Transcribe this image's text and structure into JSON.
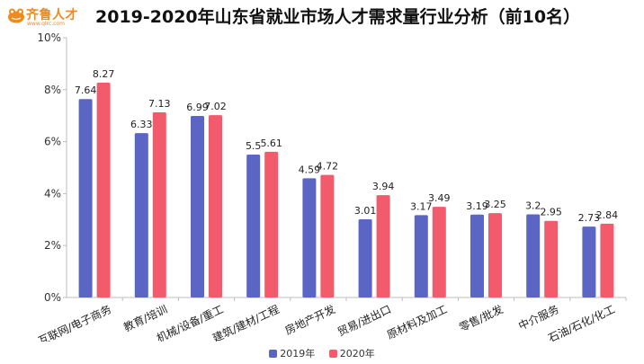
{
  "logo": {
    "name": "齐鲁人才",
    "url": "www.qlrc.com"
  },
  "chart_data": {
    "type": "bar",
    "title": "2019-2020年山东省就业市场人才需求量行业分析（前10名）",
    "categories": [
      "互联网/电子商务",
      "教育/培训",
      "机械/设备/重工",
      "建筑/建材/工程",
      "房地产开发",
      "贸易/进出口",
      "原材料及加工",
      "零售/批发",
      "中介服务",
      "石油/石化/化工"
    ],
    "series": [
      {
        "name": "2019年",
        "values": [
          7.64,
          6.33,
          6.99,
          5.5,
          4.59,
          3.01,
          3.17,
          3.19,
          3.2,
          2.73
        ],
        "color": "#5b65c4"
      },
      {
        "name": "2020年",
        "values": [
          8.27,
          7.13,
          7.02,
          5.61,
          4.72,
          3.94,
          3.49,
          3.25,
          2.95,
          2.84
        ],
        "color": "#f25b6b"
      }
    ],
    "ylim": [
      0,
      10
    ],
    "yticks": [
      "0%",
      "2%",
      "4%",
      "6%",
      "8%",
      "10%"
    ],
    "ytick_values": [
      0,
      2,
      4,
      6,
      8,
      10
    ],
    "grid": false,
    "legend": "bottom-center",
    "xlabel": "",
    "ylabel": ""
  }
}
